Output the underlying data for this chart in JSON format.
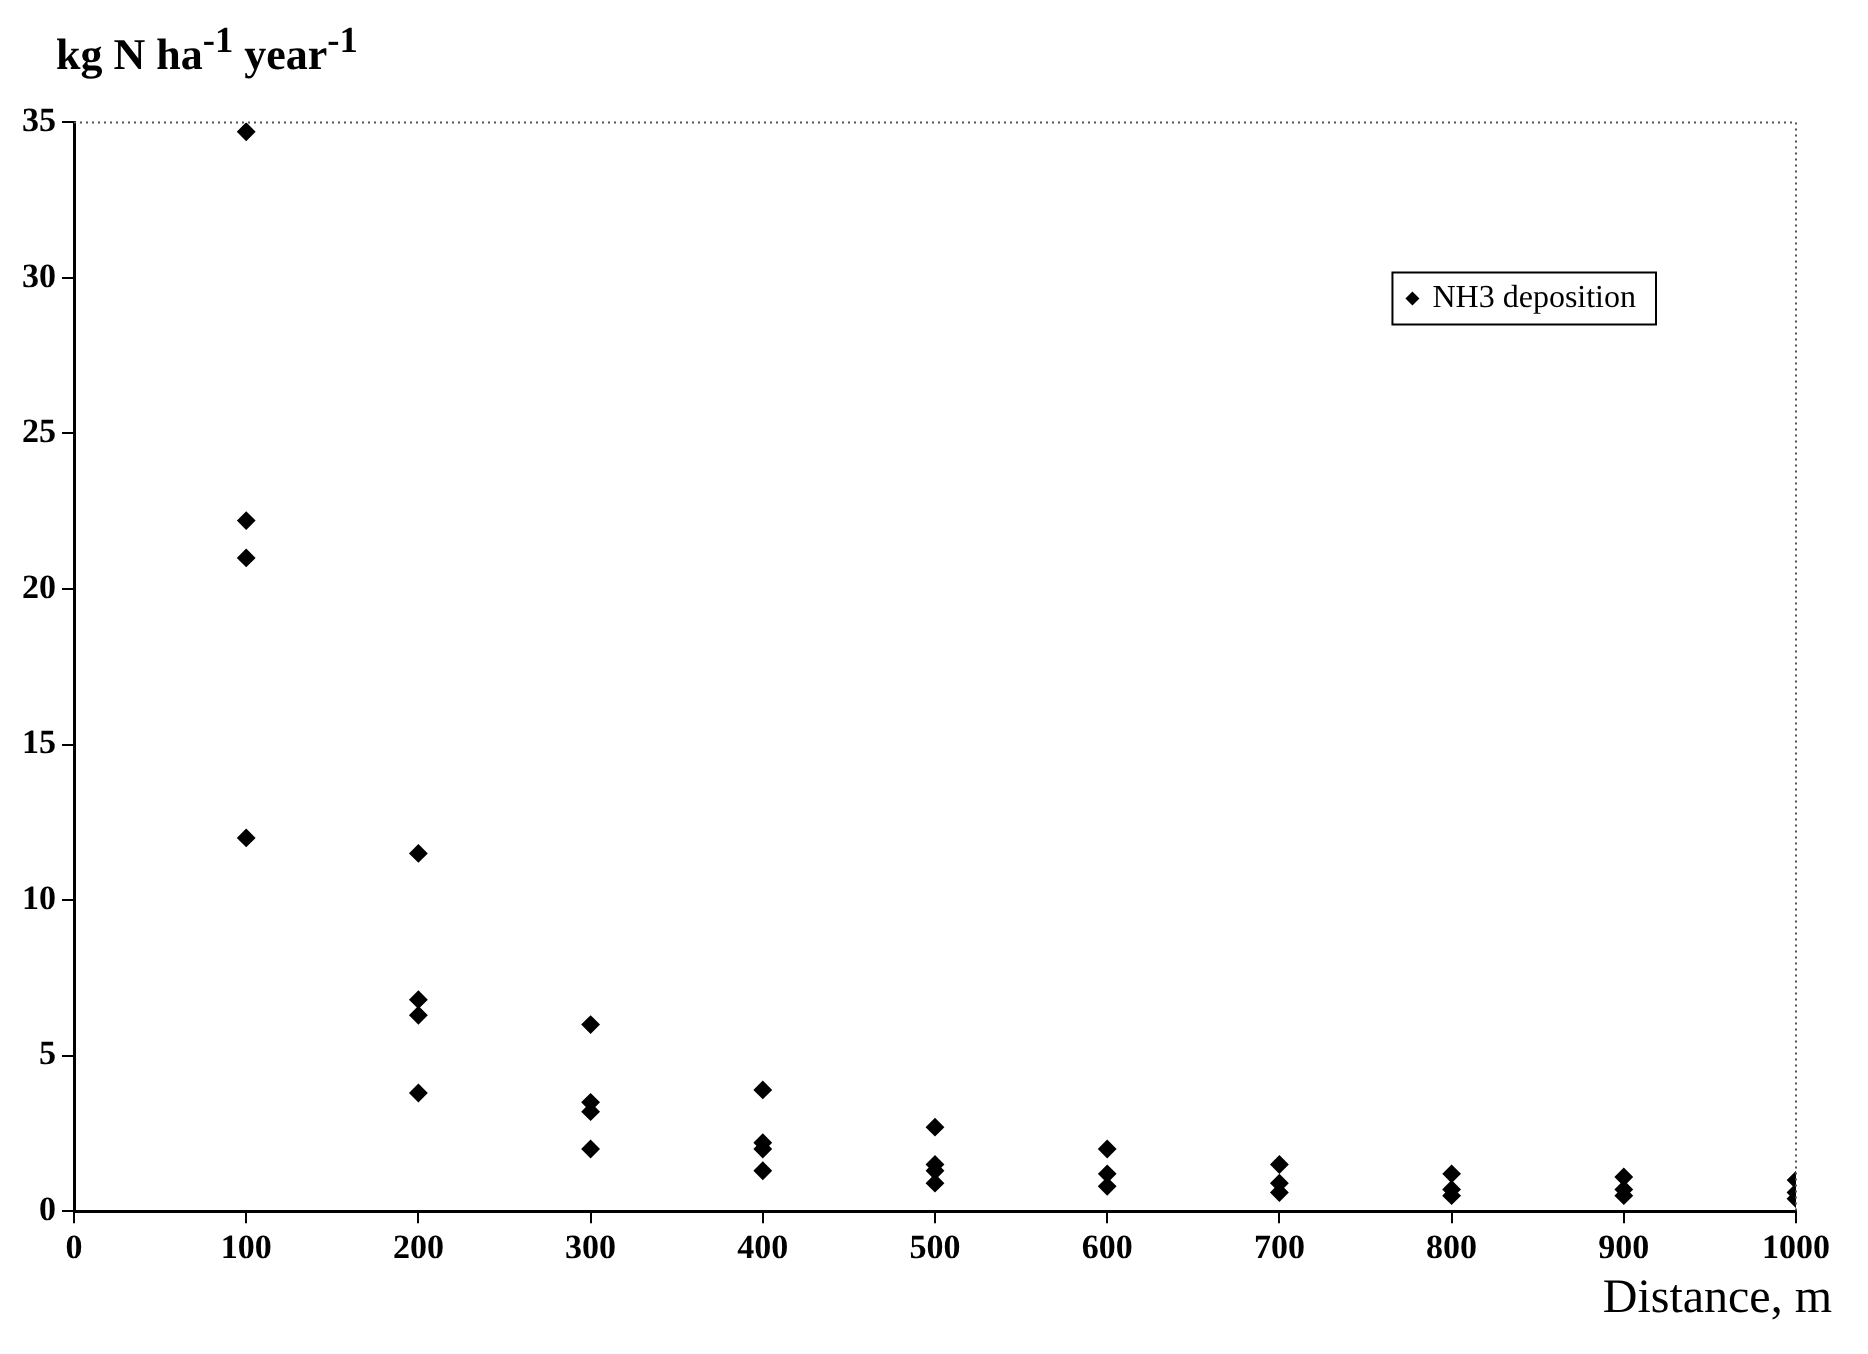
{
  "chart_data": {
    "type": "scatter",
    "xlabel": "Distance, m",
    "ylabel": "kg N ha$^{-1}$ year$^{-1}$",
    "series": [
      {
        "name": "NH3 deposition",
        "color": "#000000",
        "x": [
          100,
          100,
          100,
          100,
          200,
          200,
          200,
          200,
          300,
          300,
          300,
          300,
          400,
          400,
          400,
          400,
          500,
          500,
          500,
          500,
          600,
          600,
          600,
          700,
          700,
          700,
          800,
          800,
          800,
          900,
          900,
          900,
          1000,
          1000,
          1000
        ],
        "values": [
          34.7,
          22.2,
          21.0,
          12.0,
          11.5,
          6.8,
          6.3,
          3.8,
          6.0,
          3.5,
          3.2,
          2.0,
          3.9,
          2.2,
          2.0,
          1.3,
          2.7,
          1.5,
          1.3,
          0.9,
          2.0,
          1.2,
          0.8,
          1.5,
          0.9,
          0.6,
          1.2,
          0.7,
          0.5,
          1.1,
          0.7,
          0.5,
          1.0,
          0.6,
          0.4
        ]
      }
    ],
    "xlim": [
      0,
      1000
    ],
    "xticks": [
      0,
      100,
      200,
      300,
      400,
      500,
      600,
      700,
      800,
      900,
      1000
    ],
    "ylim": [
      0,
      35
    ],
    "yticks": [
      0,
      5,
      10,
      15,
      20,
      25,
      30,
      35
    ],
    "grid": false,
    "legend": "top right",
    "marker": "diamond"
  }
}
